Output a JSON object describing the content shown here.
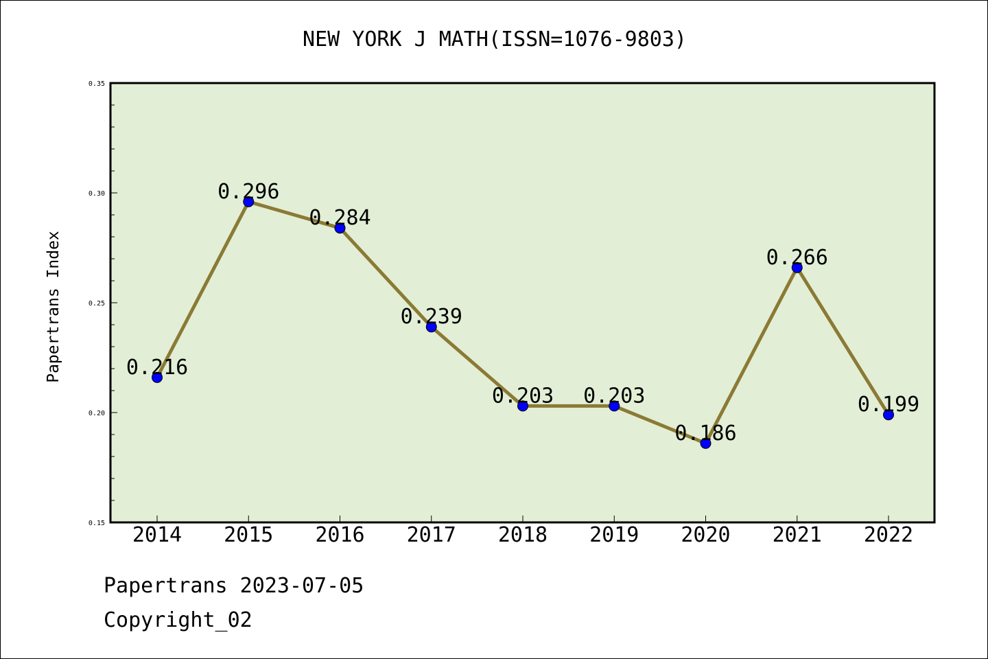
{
  "chart_data": {
    "type": "line",
    "title": "NEW YORK J MATH(ISSN=1076-9803)",
    "xlabel": "",
    "ylabel": "Papertrans Index",
    "categories": [
      "2014",
      "2015",
      "2016",
      "2017",
      "2018",
      "2019",
      "2020",
      "2021",
      "2022"
    ],
    "series": [
      {
        "values": [
          0.216,
          0.296,
          0.284,
          0.239,
          0.203,
          0.203,
          0.186,
          0.266,
          0.199
        ],
        "data_labels": [
          "0.216",
          "0.296",
          "0.284",
          "0.239",
          "0.203",
          "0.203",
          "0.186",
          "0.266",
          "0.199"
        ]
      }
    ],
    "ylim": [
      0.15,
      0.35
    ],
    "yticks": [
      0.15,
      0.2,
      0.25,
      0.3,
      0.35
    ],
    "ytick_labels": [
      "0.15",
      "0.20",
      "0.25",
      "0.30",
      "0.35"
    ],
    "grid": false,
    "colors": {
      "plot_background": "#e2efd6",
      "line": "#8b7a35",
      "marker": "#0000ff"
    }
  },
  "footer": {
    "line1": "Papertrans 2023-07-05",
    "line2": "Copyright_02"
  }
}
